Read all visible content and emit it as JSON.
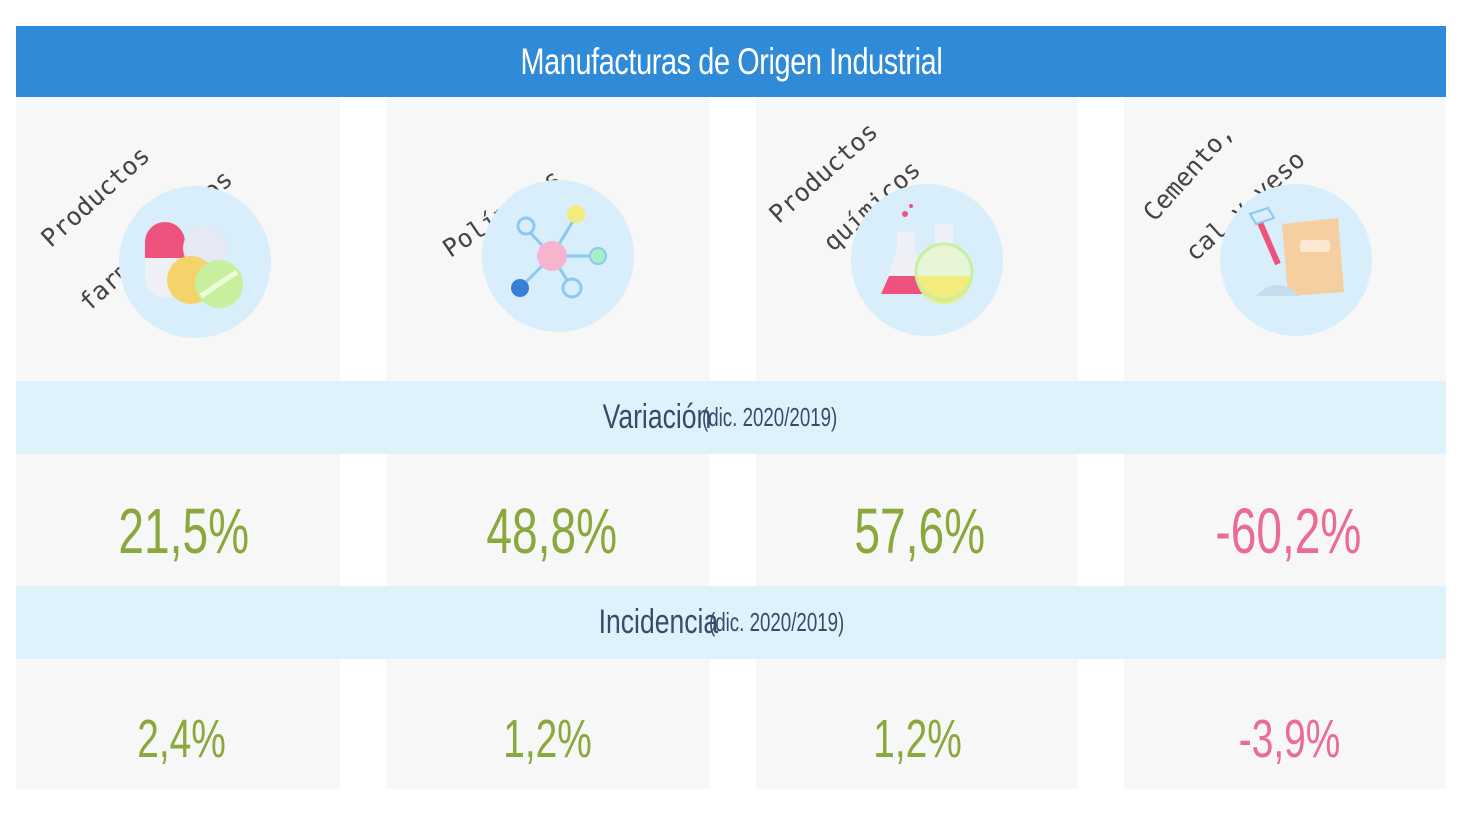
{
  "title": "Manufacturas de Origen Industrial",
  "colors": {
    "header": "#2f8ad8",
    "band": "#def2fb",
    "positive": "#8aa83c",
    "negative": "#ec6b92"
  },
  "categories": [
    {
      "label_line1": "Productos",
      "label_line2": "farmacéuticos",
      "icon": "pills-icon"
    },
    {
      "label_line1": "Polímeros",
      "label_line2": "",
      "icon": "molecule-icon"
    },
    {
      "label_line1": "Productos",
      "label_line2": "químicos",
      "icon": "flask-icon"
    },
    {
      "label_line1": "Cemento,",
      "label_line2": "cal y yeso",
      "icon": "cement-bag-icon"
    }
  ],
  "variacion": {
    "label": "Variación",
    "period": "(dic. 2020/2019)",
    "values": [
      "21,5%",
      "48,8%",
      "57,6%",
      "-60,2%"
    ]
  },
  "incidencia": {
    "label": "Incidencia",
    "period": "(dic. 2020/2019)",
    "values": [
      "2,4%",
      "1,2%",
      "1,2%",
      "-3,9%"
    ]
  }
}
